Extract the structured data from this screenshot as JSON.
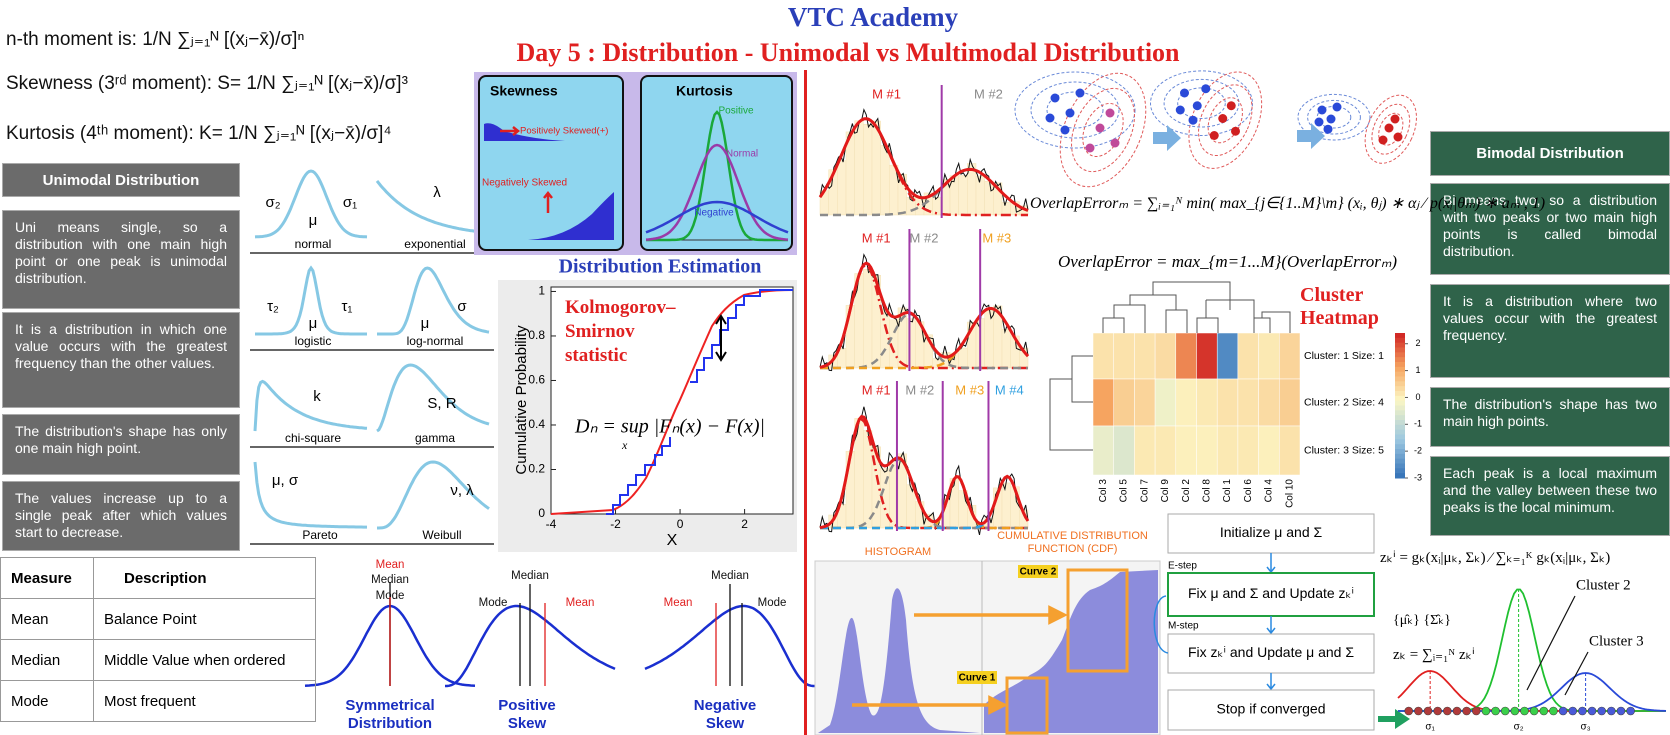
{
  "header": {
    "title": "VTC Academy",
    "subtitle": "Day 5 : Distribution - Unimodal vs Multimodal Distribution"
  },
  "moments": [
    "n-th moment is: 1/N ∑ⱼ₌₁ᴺ [(xⱼ−x̄)/σ]ⁿ",
    "Skewness (3ʳᵈ moment): S= 1/N ∑ⱼ₌₁ᴺ [(xⱼ−x̄)/σ]³",
    "Kurtosis (4ᵗʰ moment): K= 1/N ∑ⱼ₌₁ᴺ [(xⱼ−x̄)/σ]⁴"
  ],
  "unimodal": {
    "title": "Unimodal Distribution",
    "points": [
      "Uni means single, so a distribution with one main high point or one peak is unimodal distribution.",
      "It is a distribution in which one value occurs with the greatest frequency than the other values.",
      "The distribution's shape has only one main high point.",
      "The values increase up to a single peak after which values start to decrease."
    ]
  },
  "distributions": [
    {
      "name": "normal",
      "params": [
        "σ₂",
        "μ",
        "σ₁"
      ]
    },
    {
      "name": "exponential",
      "params": [
        "λ"
      ]
    },
    {
      "name": "logistic",
      "params": [
        "τ₂",
        "μ",
        "τ₁"
      ]
    },
    {
      "name": "log-normal",
      "params": [
        "μ",
        "σ"
      ]
    },
    {
      "name": "chi-square",
      "params": [
        "k"
      ]
    },
    {
      "name": "gamma",
      "params": [
        "S, R"
      ]
    },
    {
      "name": "Pareto",
      "params": [
        "μ, σ"
      ]
    },
    {
      "name": "Weibull",
      "params": [
        "ν, λ"
      ]
    }
  ],
  "shape_panel": {
    "skewness_title": "Skewness",
    "positive": "Positively Skewed(+)",
    "negative": "Negatively Skewed",
    "kurtosis_title": "Kurtosis",
    "kurtosis_labels": [
      "Positive",
      "Normal",
      "Negative"
    ]
  },
  "estimation": {
    "title": "Distribution Estimation",
    "annotation": "Kolmogorov–Smirnov statistic",
    "formula": "Dₙ = sup |Fₙ(x) − F(x)|",
    "formula_sub": "x",
    "ylabel": "Cumulative Probability",
    "xlabel": "X",
    "xlim": [
      -4,
      3.5
    ],
    "ylim": [
      0,
      1.02
    ],
    "xticks": [
      -4,
      -2,
      0,
      2
    ],
    "yticks": [
      0,
      0.2,
      0.4,
      0.6,
      0.8,
      1
    ]
  },
  "table": {
    "header": [
      "Measure",
      "Description"
    ],
    "rows": [
      [
        "Mean",
        "Balance Point"
      ],
      [
        "Median",
        "Middle Value when ordered"
      ],
      [
        "Mode",
        "Most frequent"
      ]
    ]
  },
  "skew_curves": [
    {
      "caption": "Symmetrical Distribution",
      "mean": "Mean",
      "median": "Median",
      "mode": "Mode"
    },
    {
      "caption": "Positive Skew",
      "mean": "Mean",
      "median": "Median",
      "mode": "Mode"
    },
    {
      "caption": "Negative Skew",
      "mean": "Mean",
      "median": "Median",
      "mode": "Mode"
    }
  ],
  "mixtures": [
    [
      {
        "text": "M #1",
        "color": "#e02020"
      },
      {
        "text": "M #2",
        "color": "#8a8a8a"
      }
    ],
    [
      {
        "text": "M #1",
        "color": "#e02020"
      },
      {
        "text": "M #2",
        "color": "#8a8a8a"
      },
      {
        "text": "M #3",
        "color": "#f0a020"
      }
    ],
    [
      {
        "text": "M #1",
        "color": "#e02020"
      },
      {
        "text": "M #2",
        "color": "#8a8a8a"
      },
      {
        "text": "M #3",
        "color": "#f0a020"
      },
      {
        "text": "M #4",
        "color": "#30a0e0"
      }
    ]
  ],
  "overlap": {
    "formula_m": "OverlapErrorₘ = ∑ᵢ₌₁ᴺ min( max_{j∈{1..M}\\m} (xᵢ, θⱼ) ∗ αⱼ ⁄ p(xᵢ|θₘ) ∗ aₘ , 1)",
    "formula": "OverlapError = max_{m=1...M}(OverlapErrorₘ)"
  },
  "heatmap": {
    "title": "Cluster Heatmap",
    "rows": [
      "Cluster: 1 Size: 1",
      "Cluster: 2 Size: 4",
      "Cluster: 3 Size: 5"
    ],
    "columns": [
      "Col 3",
      "Col 5",
      "Col 7",
      "Col 9",
      "Col 2",
      "Col 8",
      "Col 1",
      "Col 6",
      "Col 4",
      "Col 10"
    ],
    "values": [
      [
        0.3,
        0.3,
        0.3,
        0.4,
        1.5,
        2.3,
        -2.5,
        0.3,
        0.2,
        0.5
      ],
      [
        1.2,
        0.6,
        0.5,
        -0.2,
        0.1,
        0.2,
        0.3,
        0.3,
        0.4,
        0.6
      ],
      [
        -0.3,
        -0.5,
        0.2,
        0.2,
        0.1,
        0.1,
        0.2,
        0.2,
        0.1,
        0.3
      ]
    ],
    "scale_lim": [
      -3,
      2.4
    ],
    "scale_ticks": [
      2,
      1,
      0,
      -1,
      -2,
      -3
    ]
  },
  "cdf_panel": {
    "histogram": "HISTOGRAM",
    "cdf": "CUMULATIVE DISTRIBUTION FUNCTION (CDF)",
    "curve1": "Curve 1",
    "curve2": "Curve 2"
  },
  "em": {
    "steps": [
      "Initialize μ and Σ",
      "Fix μ and Σ and Update zₖⁱ",
      "Fix zₖⁱ and Update μ and Σ",
      "Stop if converged"
    ],
    "e_step": "E-step",
    "m_step": "M-step",
    "params": "{μ̂ₖ} {Σ̂ₖ}",
    "formula": "zₖⁱ = gₖ(xᵢ|μₖ, Σₖ) ⁄ ∑ₖ₌₁ᴷ gₖ(xᵢ|μₖ, Σₖ)",
    "zk": "zₖ = ∑ᵢ₌₁ᴺ zₖⁱ",
    "cluster2": "Cluster 2",
    "cluster3": "Cluster 3",
    "sigmas": [
      "σ₁",
      "σ₂",
      "σ₃"
    ]
  },
  "bimodal": {
    "title": "Bimodal Distribution",
    "points": [
      "Bi means two, so a distribution with two peaks or two main high points is called bimodal distribution.",
      "It is a distribution where two values occur with the greatest frequency.",
      "The distribution's shape has two main high points.",
      "Each peak is a local maximum and the valley between these two peaks is the local minimum."
    ]
  }
}
